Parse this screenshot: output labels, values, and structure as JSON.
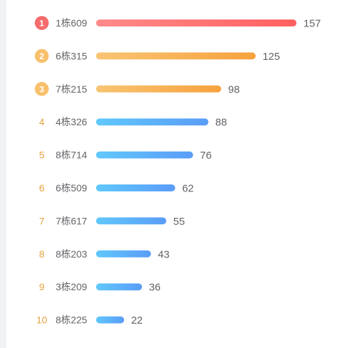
{
  "chart_data": {
    "type": "bar",
    "orientation": "horizontal",
    "title": "",
    "xlabel": "",
    "ylabel": "",
    "ranks": [
      "1",
      "2",
      "3",
      "4",
      "5",
      "6",
      "7",
      "8",
      "9",
      "10"
    ],
    "categories": [
      "1栋609",
      "6栋315",
      "7栋215",
      "4栋326",
      "8栋714",
      "6栋509",
      "7栋617",
      "8栋203",
      "3栋209",
      "8栋225"
    ],
    "values": [
      157,
      125,
      98,
      88,
      76,
      62,
      55,
      43,
      36,
      22
    ],
    "xlim": [
      0,
      157
    ],
    "grid": false,
    "legend": "none",
    "colors": {
      "rank1_badge": "#f56c6c",
      "rank23_badge": "#f8c06c",
      "rank_text": "#e6a23c",
      "bar1_start": "#ff8a8a",
      "bar1_end": "#ff6060",
      "bar23_start": "#f8c472",
      "bar23_end": "#f7a23e",
      "bar_blue_start": "#60c8fb",
      "bar_blue_end": "#5a9cf8",
      "label": "#606266"
    }
  }
}
